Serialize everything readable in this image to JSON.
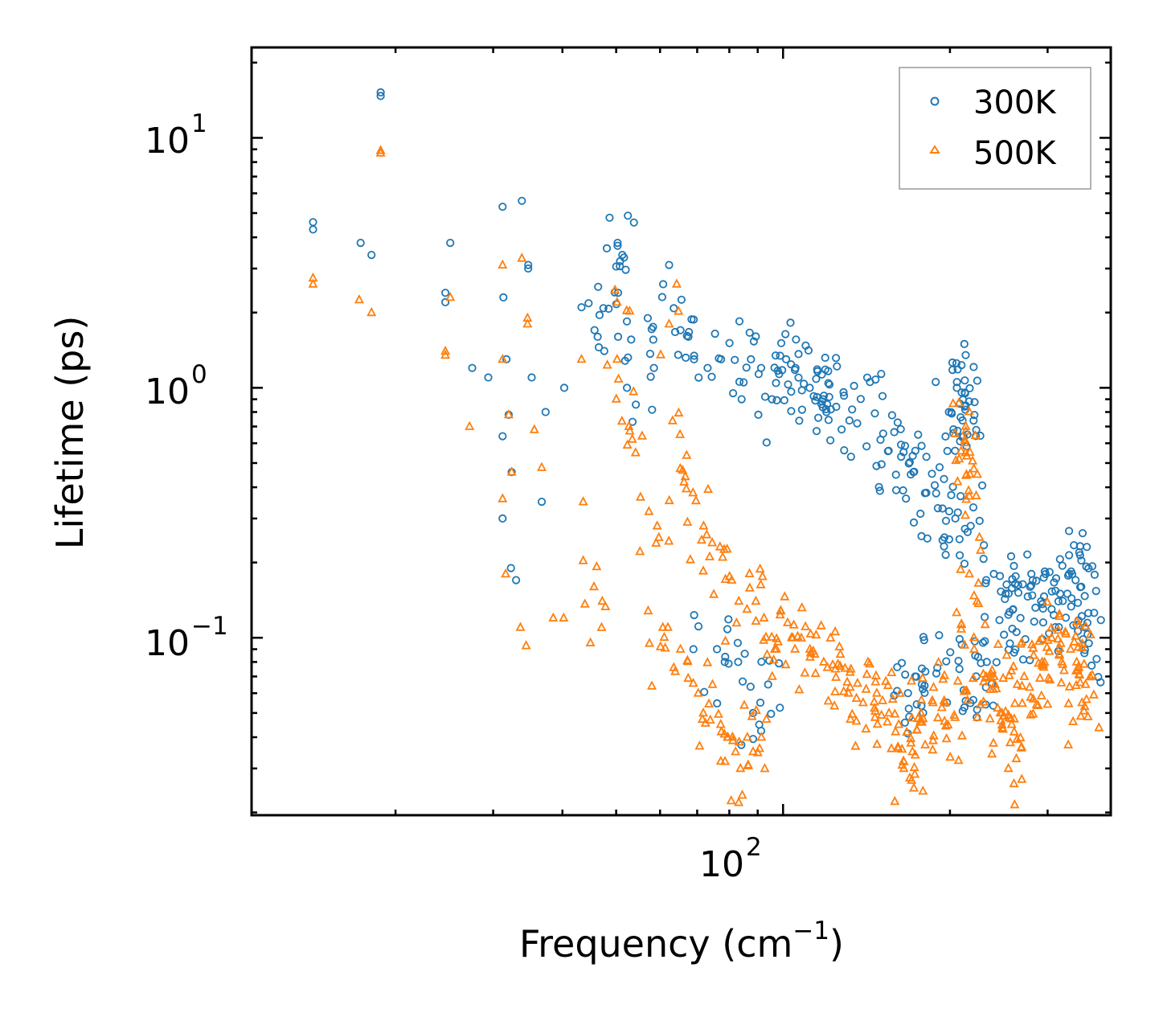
{
  "chart_data": {
    "type": "scatter",
    "title": "",
    "xlabel": "Frequency (cm",
    "xlabel_sup": "−1",
    "xlabel_suffix": ")",
    "ylabel": "Lifetime (ps)",
    "xscale": "log",
    "yscale": "log",
    "xlim": [
      11,
      390
    ],
    "ylim": [
      0.0195,
      23
    ],
    "x_ticks": [
      {
        "base": "10",
        "exp": "2",
        "value": 100
      }
    ],
    "y_ticks": [
      {
        "base": "10",
        "exp": "1",
        "value": 10
      },
      {
        "base": "10",
        "exp": "0",
        "value": 1
      },
      {
        "base": "10",
        "exp": "−1",
        "value": 0.1
      }
    ],
    "legend": {
      "location": "top-right",
      "entries": [
        "300K",
        "500K"
      ]
    },
    "colors": {
      "300K": "#1f77b4",
      "500K": "#ff7f0e"
    },
    "markers": {
      "300K": "open-circle",
      "500K": "open-triangle"
    },
    "series": [
      {
        "name": "300K",
        "points": [
          [
            14.2,
            4.6
          ],
          [
            14.2,
            4.3
          ],
          [
            17.3,
            3.8
          ],
          [
            18.1,
            3.4
          ],
          [
            18.8,
            15.2
          ],
          [
            18.8,
            14.7
          ],
          [
            24.6,
            2.4
          ],
          [
            24.6,
            2.2
          ],
          [
            25.1,
            3.8
          ],
          [
            27.5,
            1.2
          ],
          [
            29.4,
            1.1
          ],
          [
            31.2,
            5.3
          ],
          [
            31.3,
            2.3
          ],
          [
            31.7,
            1.3
          ],
          [
            31.2,
            0.64
          ],
          [
            32,
            0.78
          ],
          [
            32.4,
            0.46
          ],
          [
            33.8,
            5.6
          ],
          [
            34.7,
            3.1
          ],
          [
            34.7,
            3.0
          ],
          [
            35.2,
            1.1
          ],
          [
            37.3,
            0.8
          ],
          [
            36.7,
            0.35
          ],
          [
            31.2,
            0.3
          ],
          [
            32.3,
            0.19
          ],
          [
            33,
            0.17
          ],
          [
            40.3,
            1.0
          ],
          [
            43.3,
            2.1
          ],
          [
            45.7,
            1.7
          ],
          [
            46.3,
            1.6
          ],
          [
            50.3,
            3.8
          ],
          [
            50.3,
            3.7
          ],
          [
            51.3,
            3.4
          ],
          [
            50.4,
            2.4
          ],
          [
            50.4,
            1.6
          ],
          [
            52.3,
            1.0
          ],
          [
            57,
            1.9
          ],
          [
            58.5,
            1.2
          ],
          [
            62.3,
            3.1
          ],
          [
            65.3,
            1.7
          ],
          [
            67.5,
            1.6
          ],
          [
            69.1,
            1.3
          ],
          [
            73.1,
            1.2
          ],
          [
            77.3,
            1.3
          ],
          [
            84.2,
            0.9
          ],
          [
            87.5,
            1.3
          ],
          [
            91.3,
            1.2
          ],
          [
            95.5,
            0.9
          ],
          [
            101.3,
            1.3
          ],
          [
            105.3,
            1.2
          ],
          [
            111.7,
            1.0
          ],
          [
            118,
            0.9
          ],
          [
            118.5,
            0.93
          ],
          [
            122,
            0.82
          ],
          [
            131.7,
            0.74
          ],
          [
            146.4,
            0.79
          ],
          [
            155,
            0.56
          ],
          [
            163.3,
            0.53
          ],
          [
            171.8,
            0.46
          ],
          [
            181.3,
            0.38
          ],
          [
            190.2,
            0.33
          ],
          [
            199.1,
            0.8
          ],
          [
            204.5,
            0.3
          ],
          [
            212.7,
            1.07
          ],
          [
            213,
            0.95
          ],
          [
            213.4,
            0.85
          ],
          [
            215,
            0.65
          ],
          [
            218,
            0.28
          ],
          [
            240,
            0.18
          ],
          [
            252,
            0.15
          ],
          [
            260,
            0.13
          ],
          [
            268,
            0.12
          ],
          [
            282,
            0.17
          ],
          [
            292,
            0.14
          ],
          [
            305,
            0.13
          ],
          [
            316,
            0.15
          ],
          [
            328,
            0.18
          ],
          [
            337,
            0.17
          ],
          [
            345,
            0.16
          ],
          [
            350,
            0.11
          ],
          [
            356,
            0.095
          ],
          [
            94,
            0.065
          ],
          [
            91,
            0.055
          ],
          [
            88.3,
            0.05
          ],
          [
            83,
            0.08
          ],
          [
            78.5,
            0.08
          ],
          [
            76,
            0.09
          ],
          [
            68.9,
            0.09
          ],
          [
            168,
            0.06
          ],
          [
            178,
            0.065
          ],
          [
            189,
            0.072
          ],
          [
            208,
            0.075
          ],
          [
            223,
            0.07
          ],
          [
            233,
            0.08
          ]
        ]
      },
      {
        "name": "500K",
        "points": [
          [
            14.2,
            2.75
          ],
          [
            14.2,
            2.6
          ],
          [
            17.2,
            2.25
          ],
          [
            18.1,
            2.0
          ],
          [
            18.8,
            8.9
          ],
          [
            18.8,
            8.7
          ],
          [
            24.6,
            1.4
          ],
          [
            24.6,
            1.35
          ],
          [
            25.1,
            2.3
          ],
          [
            27.2,
            0.7
          ],
          [
            31.2,
            3.1
          ],
          [
            31.2,
            1.3
          ],
          [
            32,
            0.78
          ],
          [
            33.8,
            3.3
          ],
          [
            34.6,
            1.9
          ],
          [
            34.6,
            1.8
          ],
          [
            35.6,
            0.68
          ],
          [
            36.7,
            0.48
          ],
          [
            31.2,
            0.36
          ],
          [
            32.4,
            0.46
          ],
          [
            31.6,
            0.18
          ],
          [
            33.6,
            0.11
          ],
          [
            34.4,
            0.093
          ],
          [
            38.5,
            0.12
          ],
          [
            40.2,
            0.12
          ],
          [
            43.3,
            1.3
          ],
          [
            43.6,
            0.35
          ],
          [
            45.6,
            0.16
          ],
          [
            47.2,
            0.14
          ],
          [
            50.2,
            2.2
          ],
          [
            50.2,
            1.3
          ],
          [
            52.7,
            0.7
          ],
          [
            54.2,
            0.55
          ],
          [
            57.3,
            0.32
          ],
          [
            59.3,
            0.28
          ],
          [
            62.3,
            1.8
          ],
          [
            65.2,
            0.65
          ],
          [
            66.3,
            0.42
          ],
          [
            68.8,
            0.38
          ],
          [
            71.9,
            0.28
          ],
          [
            74.5,
            0.24
          ],
          [
            77.8,
            0.21
          ],
          [
            80.8,
            0.17
          ],
          [
            83.2,
            0.14
          ],
          [
            86.1,
            0.13
          ],
          [
            89.3,
            0.14
          ],
          [
            92.4,
            0.12
          ],
          [
            96.6,
            0.09
          ],
          [
            104.1,
            0.1
          ],
          [
            111.8,
            0.09
          ],
          [
            118.4,
            0.08
          ],
          [
            124.3,
            0.075
          ],
          [
            131.2,
            0.06
          ],
          [
            139.4,
            0.055
          ],
          [
            147.6,
            0.06
          ],
          [
            155.3,
            0.05
          ],
          [
            161.7,
            0.045
          ],
          [
            165.1,
            0.03
          ],
          [
            171.1,
            0.035
          ],
          [
            177.2,
            0.05
          ],
          [
            186.4,
            0.055
          ],
          [
            196.2,
            0.055
          ],
          [
            204.3,
            0.048
          ],
          [
            212.7,
            0.62
          ],
          [
            213.4,
            0.55
          ],
          [
            214.2,
            0.45
          ],
          [
            216.7,
            0.18
          ],
          [
            221.1,
            0.09
          ],
          [
            232.4,
            0.07
          ],
          [
            240.1,
            0.07
          ],
          [
            248.2,
            0.05
          ],
          [
            254.9,
            0.03
          ],
          [
            258.4,
            0.045
          ],
          [
            264.4,
            0.065
          ],
          [
            272.2,
            0.07
          ],
          [
            283.1,
            0.085
          ],
          [
            293.2,
            0.08
          ],
          [
            305.1,
            0.1
          ],
          [
            318.3,
            0.08
          ],
          [
            330.1,
            0.09
          ],
          [
            338.5,
            0.08
          ],
          [
            346.1,
            0.055
          ],
          [
            351.2,
            0.065
          ],
          [
            77.2,
            0.045
          ],
          [
            79.4,
            0.04
          ],
          [
            82.1,
            0.035
          ],
          [
            83.8,
            0.03
          ],
          [
            86.2,
            0.04
          ],
          [
            88.3,
            0.035
          ],
          [
            91.4,
            0.04
          ],
          [
            74.6,
            0.065
          ],
          [
            71.8,
            0.05
          ],
          [
            70.3,
            0.06
          ],
          [
            65.3,
            0.09
          ],
          [
            60.7,
            0.11
          ],
          [
            57.4,
            0.095
          ]
        ]
      }
    ]
  }
}
